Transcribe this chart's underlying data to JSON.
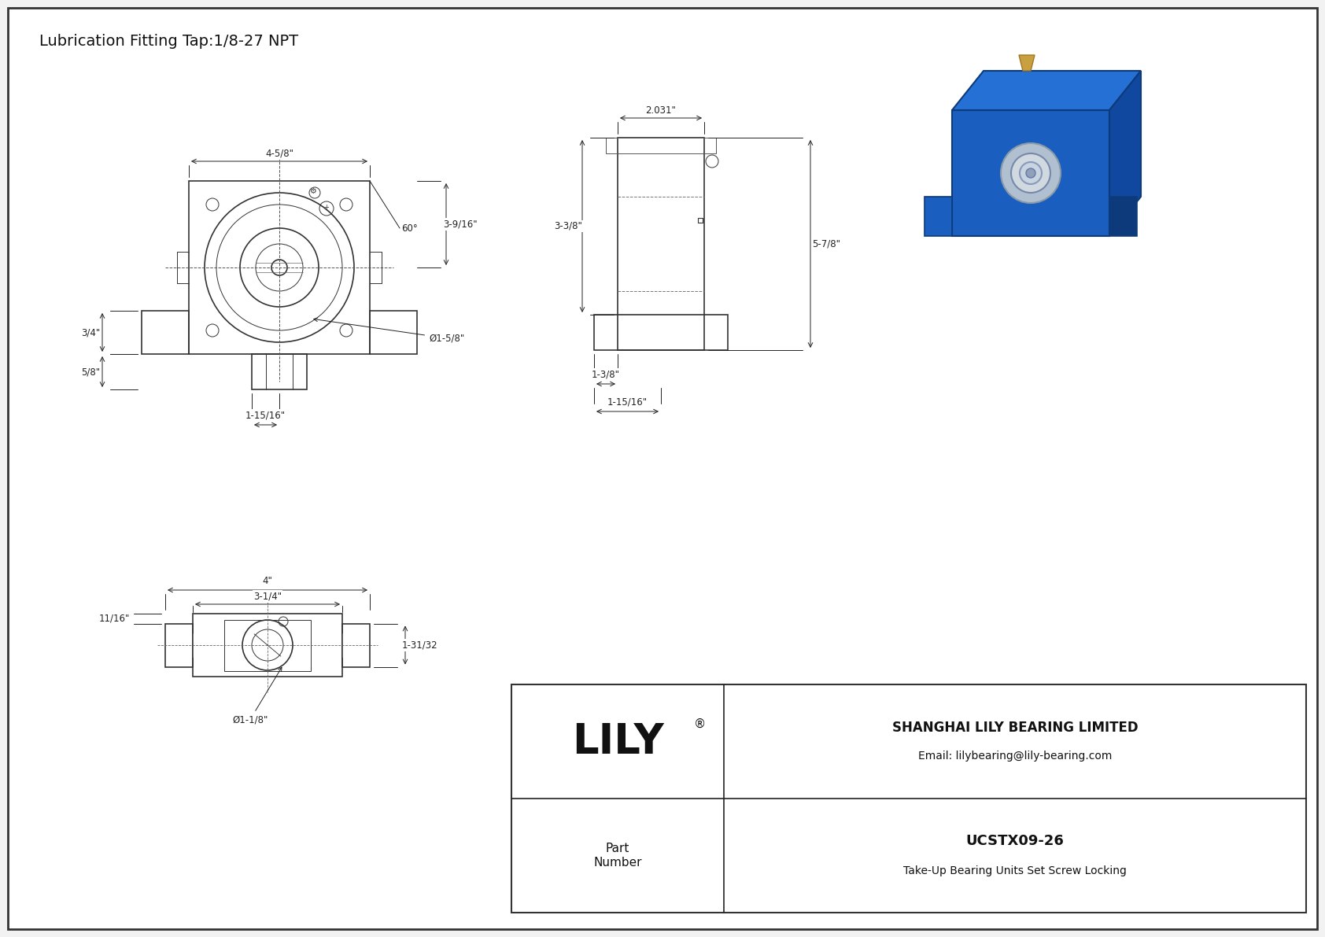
{
  "title": "Lubrication Fitting Tap:1/8-27 NPT",
  "bg_color": "#f0f0f0",
  "line_color": "#333333",
  "dim_color": "#222222",
  "title_fontsize": 14,
  "annotation_fontsize": 8.5,
  "company": "SHANGHAI LILY BEARING LIMITED",
  "email": "Email: lilybearing@lily-bearing.com",
  "part_label": "Part\nNumber",
  "part_number": "UCSTX09-26",
  "part_desc": "Take-Up Bearing Units Set Screw Locking",
  "logo": "LILY",
  "dims_front": {
    "width": "4-5/8\"",
    "height_total": "3-9/16\"",
    "foot_height": "3/4\"",
    "foot2_height": "5/8\"",
    "center_dist": "1-15/16\"",
    "bore": "Ø1-5/8\"",
    "angle": "60°"
  },
  "dims_side": {
    "width": "2.031\"",
    "height": "3-3/8\"",
    "total_height": "5-7/8\"",
    "foot_w1": "1-3/8\"",
    "foot_w2": "1-15/16\""
  },
  "dims_top": {
    "width1": "4\"",
    "width2": "3-1/4\"",
    "height": "1-31/32",
    "foot": "11/16\"",
    "bore": "Ø1-1/8\""
  }
}
